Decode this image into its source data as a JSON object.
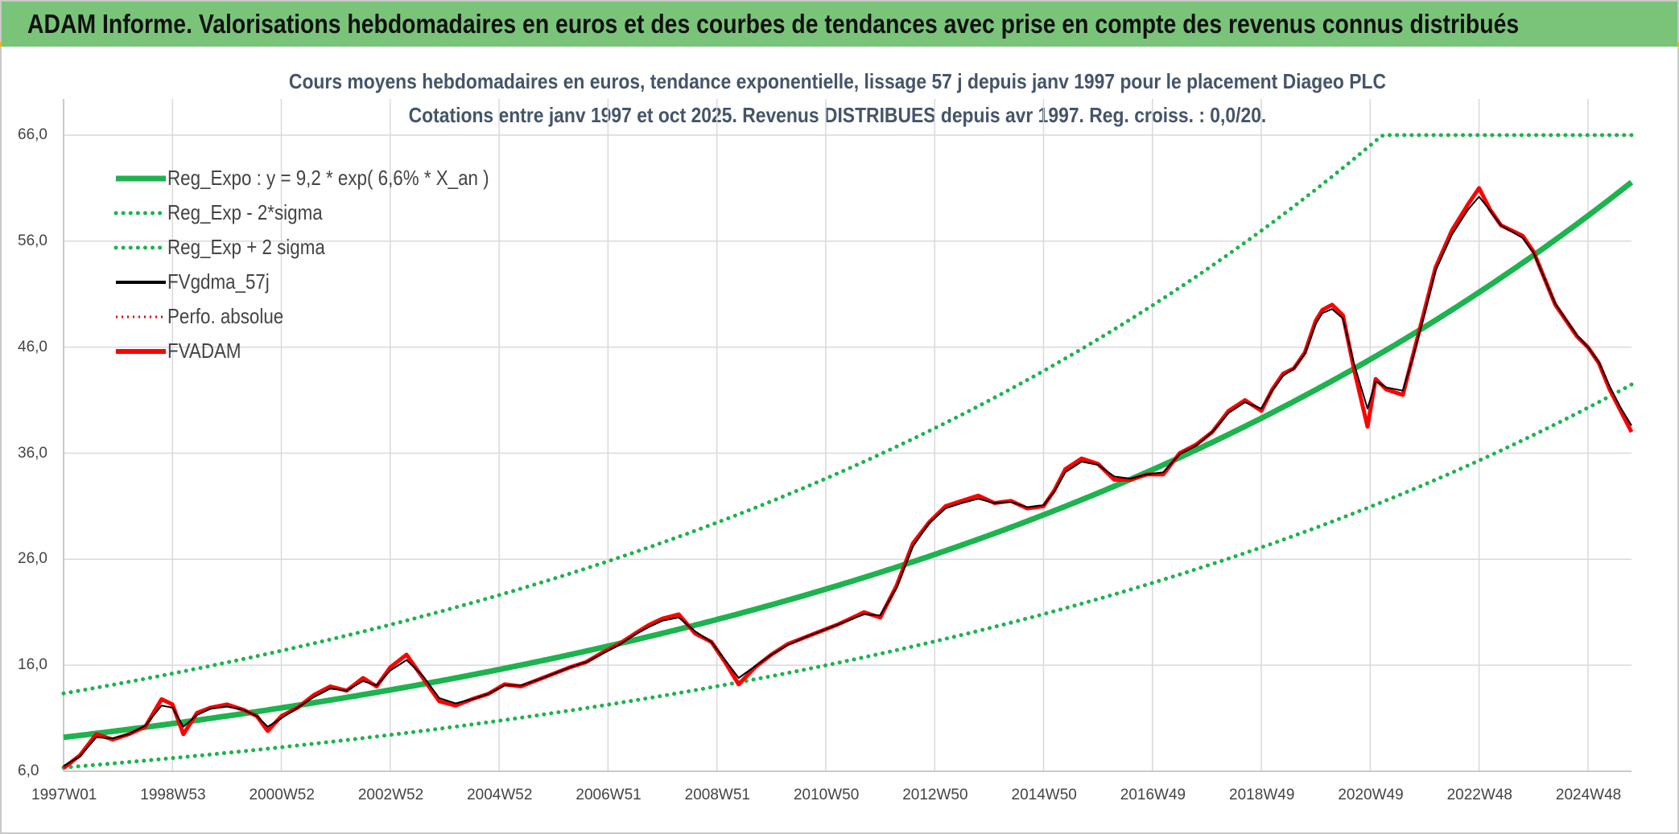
{
  "banner": {
    "title": "ADAM Informe. Valorisations hebdomadaires en euros et des courbes de tendances avec prise en compte des revenus connus distribués"
  },
  "colors": {
    "banner_bg": "#7ac47a",
    "reg_expo": "#1db34e",
    "reg_bands": "#1db34e",
    "fvgdma": "#000000",
    "perfo": "#e30000",
    "fvadam": "#ff0000",
    "grid": "#d9d9d9",
    "title_text": "#44546a"
  },
  "chart_data": {
    "type": "line",
    "title_line1": "Cours moyens hebdomadaires en euros, tendance exponentielle, lissage 57 j depuis janv 1997 pour le placement Diageo PLC",
    "title_line2": "Cotations entre janv 1997 et oct 2025. Revenus DISTRIBUES depuis avr 1997. Reg. croiss. : 0,0/20.",
    "xlabel": "",
    "ylabel": "",
    "xlim": [
      1997.0,
      2025.8
    ],
    "ylim": [
      6.0,
      66.0
    ],
    "y_ticks": [
      "6,0",
      "16,0",
      "26,0",
      "36,0",
      "46,0",
      "56,0",
      "66,0"
    ],
    "y_tick_values": [
      6,
      16,
      26,
      36,
      46,
      56,
      66
    ],
    "x_ticks": [
      "1997W01",
      "1998W53",
      "2000W52",
      "2002W52",
      "2004W52",
      "2006W51",
      "2008W51",
      "2010W50",
      "2012W50",
      "2014W50",
      "2016W49",
      "2018W49",
      "2020W49",
      "2022W48",
      "2024W48"
    ],
    "x_tick_values": [
      1997.0,
      1999.0,
      2001.0,
      2003.0,
      2005.0,
      2007.0,
      2009.0,
      2011.0,
      2013.0,
      2015.0,
      2017.0,
      2019.0,
      2021.0,
      2023.0,
      2025.0
    ],
    "grid": true,
    "legend_position": "top-left",
    "legend": [
      {
        "name": "Reg_Expo : y = 9,2 * exp( 6,6% *  X_an )",
        "style": "solid-thick",
        "color": "#1db34e"
      },
      {
        "name": "Reg_Exp - 2*sigma",
        "style": "dotted",
        "color": "#1db34e"
      },
      {
        "name": "Reg_Exp + 2 sigma",
        "style": "dotted",
        "color": "#1db34e"
      },
      {
        "name": "FVgdma_57j",
        "style": "solid",
        "color": "#000000"
      },
      {
        "name": "Perfo. absolue",
        "style": "dotted",
        "color": "#e30000"
      },
      {
        "name": "FVADAM",
        "style": "solid-thick",
        "color": "#ff0000"
      }
    ],
    "series": [
      {
        "name": "Reg_Expo",
        "formula": "9.2*exp(0.066*(x-1997))"
      },
      {
        "name": "Reg_Exp - 2*sigma",
        "formula": "0.69*9.2*exp(0.066*(x-1997))"
      },
      {
        "name": "Reg_Exp + 2 sigma",
        "formula": "1.45*9.2*exp(0.066*(x-1997)), capped at 66"
      },
      {
        "name": "FVADAM",
        "x": [
          1997.0,
          1997.3,
          1997.6,
          1997.9,
          1998.2,
          1998.5,
          1998.8,
          1999.0,
          1999.2,
          1999.45,
          1999.7,
          2000.0,
          2000.3,
          2000.55,
          2000.75,
          2001.0,
          2001.3,
          2001.6,
          2001.9,
          2002.2,
          2002.5,
          2002.75,
          2003.0,
          2003.3,
          2003.6,
          2003.9,
          2004.2,
          2004.5,
          2004.8,
          2005.1,
          2005.4,
          2005.7,
          2006.0,
          2006.3,
          2006.6,
          2006.9,
          2007.2,
          2007.5,
          2007.75,
          2008.0,
          2008.3,
          2008.6,
          2008.9,
          2009.15,
          2009.4,
          2009.7,
          2010.0,
          2010.3,
          2010.6,
          2010.9,
          2011.2,
          2011.5,
          2011.7,
          2012.0,
          2012.3,
          2012.6,
          2012.9,
          2013.2,
          2013.5,
          2013.8,
          2014.1,
          2014.4,
          2014.7,
          2015.0,
          2015.2,
          2015.4,
          2015.7,
          2016.0,
          2016.3,
          2016.6,
          2016.9,
          2017.2,
          2017.5,
          2017.8,
          2018.1,
          2018.4,
          2018.7,
          2019.0,
          2019.2,
          2019.4,
          2019.6,
          2019.8,
          2020.0,
          2020.12,
          2020.3,
          2020.5,
          2020.7,
          2020.95,
          2021.1,
          2021.3,
          2021.6,
          2021.8,
          2022.0,
          2022.2,
          2022.5,
          2022.8,
          2023.0,
          2023.2,
          2023.4,
          2023.6,
          2023.8,
          2024.0,
          2024.2,
          2024.4,
          2024.6,
          2024.8,
          2025.0,
          2025.2,
          2025.4,
          2025.6,
          2025.8
        ],
        "values": [
          6.3,
          7.5,
          9.5,
          9.0,
          9.5,
          10.2,
          12.8,
          12.3,
          9.5,
          11.5,
          12.0,
          12.3,
          11.8,
          11.2,
          9.8,
          11.2,
          12.0,
          13.2,
          14.0,
          13.6,
          14.8,
          14.0,
          15.8,
          17.0,
          14.8,
          12.6,
          12.2,
          12.8,
          13.3,
          14.2,
          14.0,
          14.6,
          15.2,
          15.8,
          16.3,
          17.2,
          18.0,
          19.0,
          19.8,
          20.4,
          20.8,
          19.0,
          18.2,
          16.3,
          14.2,
          15.8,
          17.0,
          18.0,
          18.6,
          19.2,
          19.8,
          20.5,
          21.0,
          20.5,
          23.5,
          27.5,
          29.5,
          31.0,
          31.5,
          32.0,
          31.3,
          31.5,
          30.8,
          31.0,
          32.5,
          34.5,
          35.5,
          35.0,
          33.5,
          33.5,
          34.0,
          34.0,
          36.0,
          36.8,
          38.0,
          40.0,
          41.0,
          40.0,
          42.0,
          43.5,
          44.0,
          45.5,
          48.5,
          49.5,
          50.0,
          49.0,
          44.0,
          38.5,
          43.0,
          42.0,
          41.5,
          45.5,
          49.5,
          53.5,
          57.0,
          59.5,
          61.0,
          59.0,
          57.5,
          57.0,
          56.5,
          55.0,
          52.5,
          50.0,
          48.5,
          47.0,
          46.0,
          44.5,
          42.0,
          40.0,
          38.0
        ]
      },
      {
        "name": "FVgdma_57j",
        "x": [
          1997.0,
          1997.3,
          1997.6,
          1997.9,
          1998.2,
          1998.5,
          1998.8,
          1999.0,
          1999.2,
          1999.45,
          1999.7,
          2000.0,
          2000.3,
          2000.55,
          2000.75,
          2001.0,
          2001.3,
          2001.6,
          2001.9,
          2002.2,
          2002.5,
          2002.75,
          2003.0,
          2003.3,
          2003.6,
          2003.9,
          2004.2,
          2004.5,
          2004.8,
          2005.1,
          2005.4,
          2005.7,
          2006.0,
          2006.3,
          2006.6,
          2006.9,
          2007.2,
          2007.5,
          2007.75,
          2008.0,
          2008.3,
          2008.6,
          2008.9,
          2009.15,
          2009.4,
          2009.7,
          2010.0,
          2010.3,
          2010.6,
          2010.9,
          2011.2,
          2011.5,
          2011.7,
          2012.0,
          2012.3,
          2012.6,
          2012.9,
          2013.2,
          2013.5,
          2013.8,
          2014.1,
          2014.4,
          2014.7,
          2015.0,
          2015.2,
          2015.4,
          2015.7,
          2016.0,
          2016.3,
          2016.6,
          2016.9,
          2017.2,
          2017.5,
          2017.8,
          2018.1,
          2018.4,
          2018.7,
          2019.0,
          2019.2,
          2019.4,
          2019.6,
          2019.8,
          2020.0,
          2020.12,
          2020.3,
          2020.5,
          2020.7,
          2020.95,
          2021.1,
          2021.3,
          2021.6,
          2021.8,
          2022.0,
          2022.2,
          2022.5,
          2022.8,
          2023.0,
          2023.2,
          2023.4,
          2023.6,
          2023.8,
          2024.0,
          2024.2,
          2024.4,
          2024.6,
          2024.8,
          2025.0,
          2025.2,
          2025.4,
          2025.6,
          2025.8
        ],
        "values": [
          6.5,
          7.4,
          9.2,
          9.1,
          9.5,
          10.3,
          12.2,
          12.0,
          10.2,
          11.3,
          11.9,
          12.1,
          11.8,
          11.2,
          10.2,
          11.0,
          12.0,
          13.0,
          13.8,
          13.6,
          14.5,
          14.1,
          15.5,
          16.5,
          15.0,
          12.9,
          12.4,
          12.8,
          13.3,
          14.1,
          14.1,
          14.6,
          15.2,
          15.8,
          16.3,
          17.1,
          17.9,
          18.9,
          19.6,
          20.2,
          20.5,
          19.2,
          18.2,
          16.5,
          14.8,
          15.9,
          17.0,
          17.9,
          18.6,
          19.2,
          19.8,
          20.4,
          20.8,
          20.7,
          23.3,
          27.2,
          29.4,
          30.8,
          31.3,
          31.7,
          31.3,
          31.4,
          30.9,
          31.1,
          32.4,
          34.2,
          35.2,
          34.9,
          33.8,
          33.6,
          34.0,
          34.2,
          35.9,
          36.7,
          38.0,
          39.8,
          40.8,
          40.2,
          41.9,
          43.3,
          44.0,
          45.4,
          48.2,
          49.2,
          49.6,
          48.7,
          44.5,
          40.2,
          42.8,
          42.2,
          41.9,
          45.3,
          49.2,
          53.2,
          56.6,
          59.0,
          60.2,
          58.9,
          57.5,
          56.9,
          56.3,
          54.9,
          52.5,
          50.1,
          48.6,
          47.1,
          46.0,
          44.6,
          42.3,
          40.3,
          38.6
        ]
      }
    ]
  }
}
